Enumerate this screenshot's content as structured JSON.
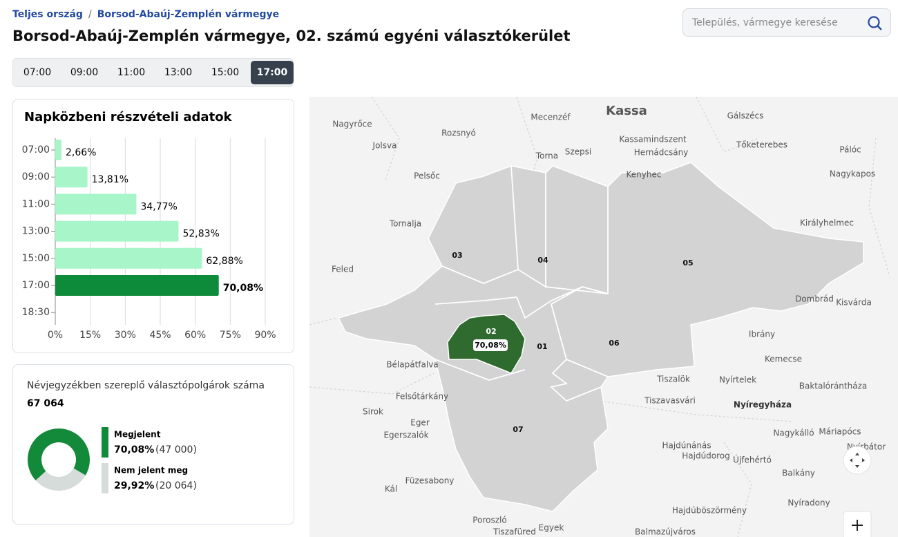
{
  "breadcrumb": [
    "Teljes ország",
    "Borsod-Abaúj-Zemplén vármegye"
  ],
  "title": "Borsod-Abaúj-Zemplén vármegye, 02. számú egyéni választókerület",
  "search_placeholder": "Település, vármegye keresése",
  "time_tabs": [
    "07:00",
    "09:00",
    "11:00",
    "13:00",
    "15:00",
    "17:00"
  ],
  "active_tab": 5,
  "chart_data": [
    {
      "type": "bar",
      "orientation": "horizontal",
      "title": "Napközbeni részvételi adatok",
      "categories": [
        "07:00",
        "09:00",
        "11:00",
        "13:00",
        "15:00",
        "17:00",
        "18:30"
      ],
      "values": [
        2.66,
        13.81,
        34.77,
        52.83,
        62.88,
        70.08,
        null
      ],
      "value_labels": [
        "2,66%",
        "13,81%",
        "34,77%",
        "52,83%",
        "62,88%",
        "70,08%",
        null
      ],
      "color": "#a8f5c9",
      "highlight_color": "#0e8a3b",
      "highlight": 5,
      "xlim": [
        0,
        90
      ],
      "xticks": [
        {
          "value": 0,
          "label": "0%"
        },
        {
          "value": 15,
          "label": "15%"
        },
        {
          "value": 30,
          "label": "30%"
        },
        {
          "value": 45,
          "label": "45%"
        },
        {
          "value": 60,
          "label": "60%"
        },
        {
          "value": 75,
          "label": "75%"
        },
        {
          "value": 90,
          "label": "90%"
        }
      ],
      "grid": true
    },
    {
      "type": "pie",
      "title": "Névjegyzékben szereplő választópolgárok száma",
      "total_label": "67 064",
      "categories": [
        "Megjelent",
        "Nem jelent meg"
      ],
      "values": [
        70.08,
        29.92
      ],
      "value_labels": [
        "70,08%",
        "29,92%"
      ],
      "count_labels": [
        "(47 000)",
        "(20 064)"
      ],
      "colors": [
        "#13893a",
        "#d6dcda"
      ]
    }
  ],
  "map": {
    "place_names": [
      "Kassa",
      "Nagyrőce",
      "Rozsnyó",
      "Mecenzéf",
      "Gálszécs",
      "Jolsva",
      "Kassamindszent",
      "Tőketerebes",
      "Torna",
      "Szepsi",
      "Hernádcsány",
      "Pálóc",
      "Pelsőc",
      "Kenyhec",
      "Nagykapos",
      "Tornalja",
      "Királyhelmec",
      "Feled",
      "Dombrád",
      "Kisvárda",
      "Ibrány",
      "Bélapátfalva",
      "Kemecse",
      "Tiszalök",
      "Nyírtelek",
      "Baktalórántháza",
      "Felsőtárkány",
      "Tiszavasvári",
      "Nyíregyháza",
      "Sirok",
      "Eger",
      "Egerszalók",
      "Nagykálló",
      "Máriapócs",
      "Hajdúnánás",
      "Nyírbátor",
      "Hajdúdorog",
      "Újfehértó",
      "Füzesabony",
      "Balkány",
      "Kál",
      "Nyíradony",
      "Hajdúböszörmény",
      "Poroszló",
      "Tiszafüred",
      "Egyek",
      "Balmazújváros"
    ],
    "districts": [
      "03",
      "04",
      "05",
      "01",
      "06",
      "07",
      "02"
    ],
    "highlight_label": "70,08%"
  }
}
